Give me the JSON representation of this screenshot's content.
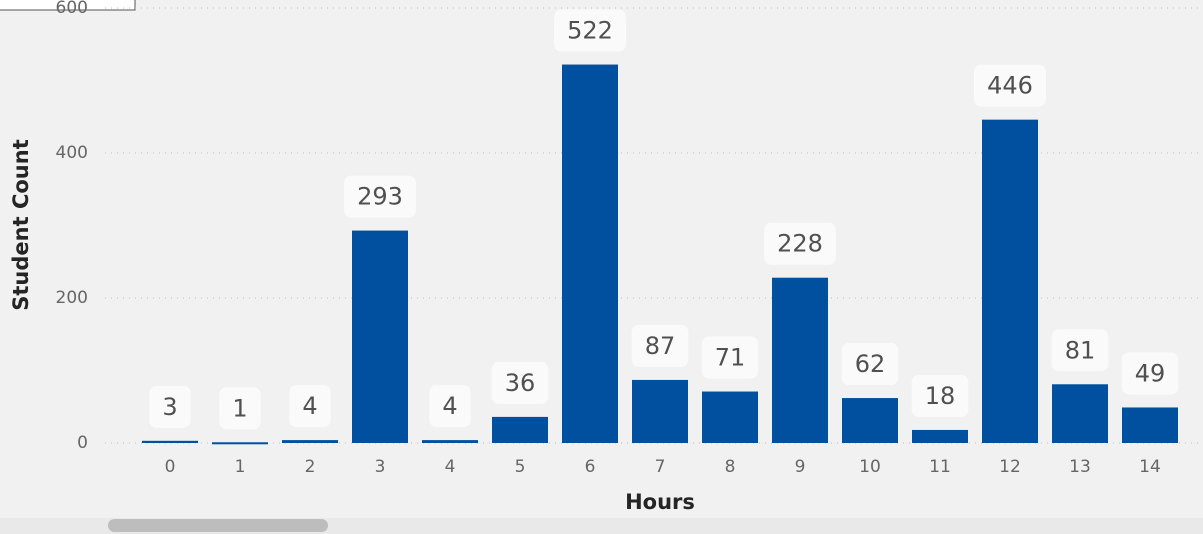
{
  "chart_data": {
    "type": "bar",
    "x_label": "Hours",
    "y_label": "Student Count",
    "categories": [
      "0",
      "1",
      "2",
      "3",
      "4",
      "5",
      "6",
      "7",
      "8",
      "9",
      "10",
      "11",
      "12",
      "13",
      "14"
    ],
    "values": [
      3,
      1,
      4,
      293,
      4,
      36,
      522,
      87,
      71,
      228,
      62,
      18,
      446,
      81,
      49
    ],
    "color": "#0050a0",
    "ylim": [
      0,
      600
    ],
    "yticks": [
      0,
      200,
      400,
      600
    ],
    "grid": true
  }
}
